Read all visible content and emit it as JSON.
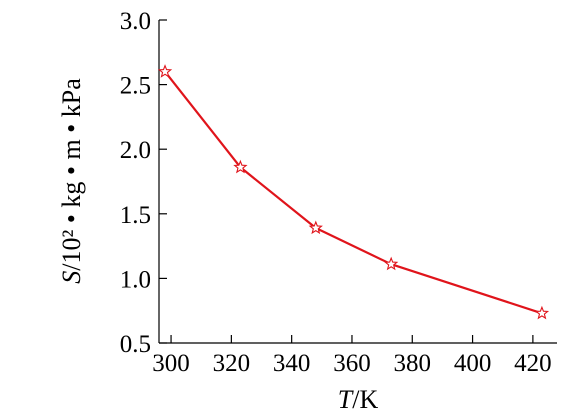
{
  "chart_data": {
    "type": "line",
    "xlabel": {
      "symbol": "T",
      "unit": "/K"
    },
    "ylabel": {
      "symbol": "S",
      "unit": "/10² • kg • m • kPa"
    },
    "xlim": [
      296,
      428
    ],
    "ylim": [
      0.5,
      3.0
    ],
    "x_ticks": [
      300,
      320,
      340,
      360,
      380,
      400,
      420
    ],
    "y_ticks": [
      0.5,
      1.0,
      1.5,
      2.0,
      2.5,
      3.0
    ],
    "x_tick_labels": [
      "300",
      "320",
      "340",
      "360",
      "380",
      "400",
      "420"
    ],
    "y_tick_labels": [
      "0.5",
      "1.0",
      "1.5",
      "2.0",
      "2.5",
      "3.0"
    ],
    "grid": false,
    "legend": "none",
    "series": [
      {
        "x": [
          298,
          323,
          348,
          373,
          423
        ],
        "y": [
          2.6,
          1.86,
          1.39,
          1.11,
          0.73
        ],
        "color": "#e0141b",
        "marker": "star-open"
      }
    ]
  }
}
